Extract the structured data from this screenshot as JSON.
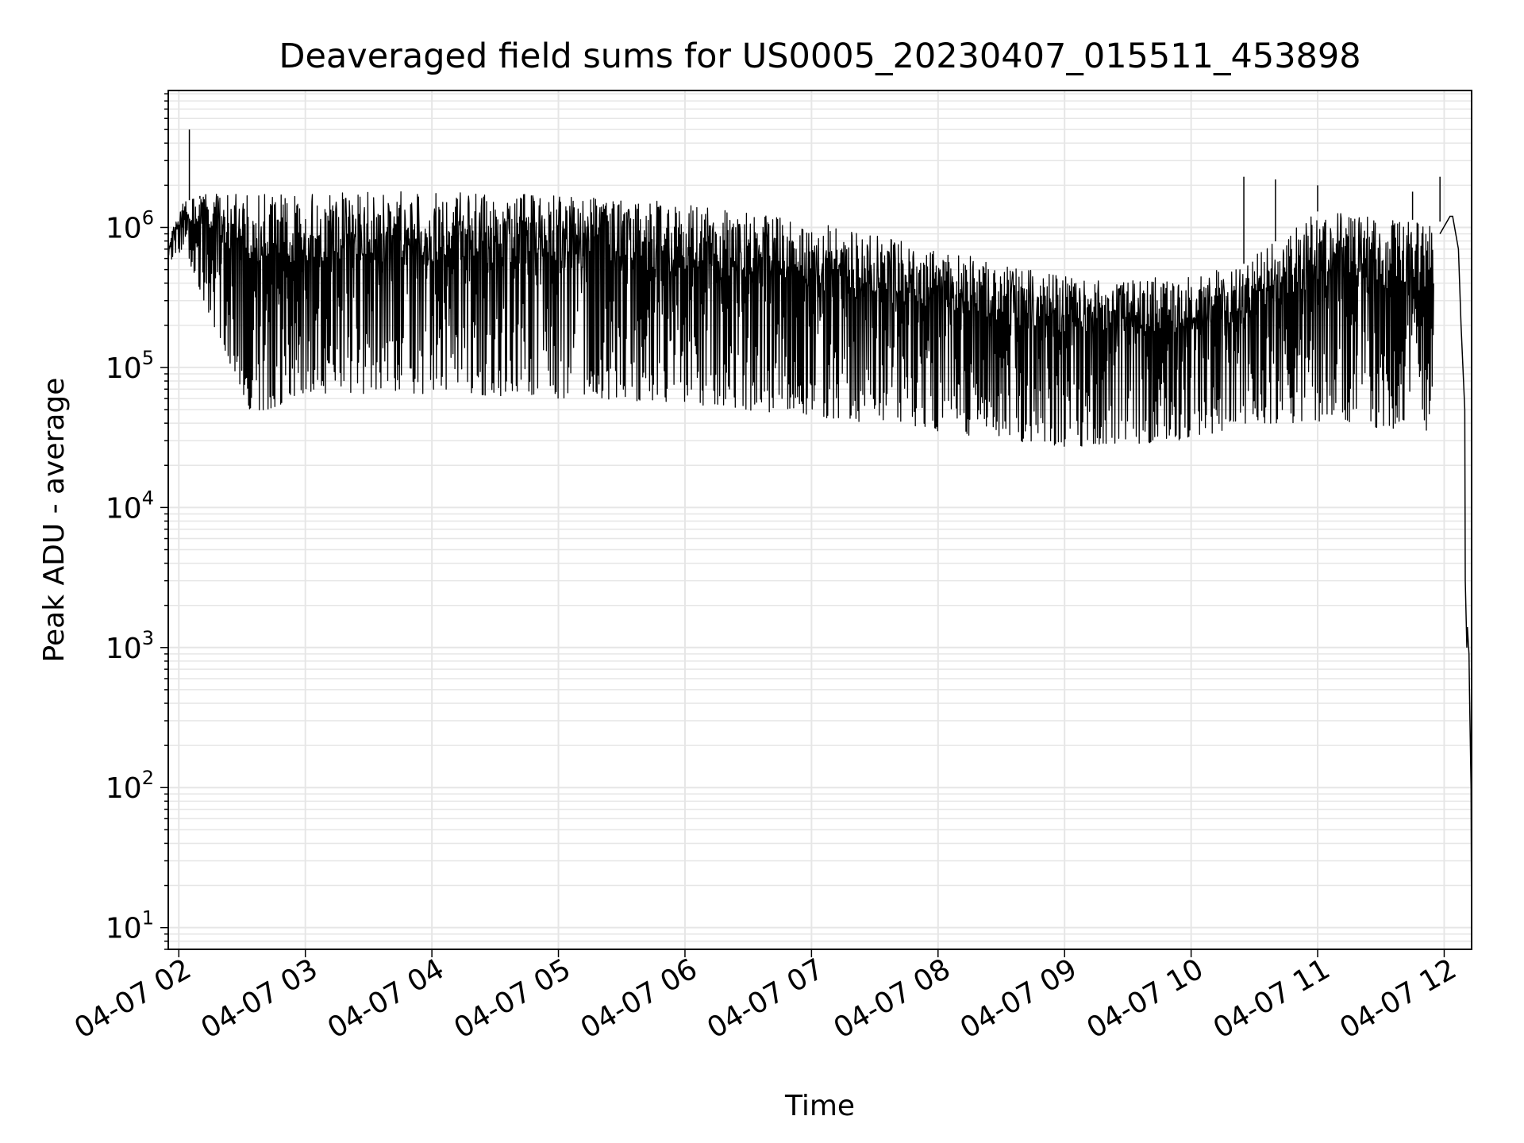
{
  "chart_data": {
    "type": "line",
    "title": "Deaveraged field sums for US0005_20230407_015511_453898",
    "xlabel": "Time",
    "ylabel": "Peak ADU - average",
    "y_scale": "log",
    "grid": true,
    "grid_color": "#e6e6e6",
    "line_color": "#000000",
    "xlim": [
      "04-07 01:55",
      "04-07 12:13"
    ],
    "ylim": [
      7,
      9500000
    ],
    "x_ticks": [
      {
        "value": "04-07 02:00",
        "label": "04-07 02"
      },
      {
        "value": "04-07 03:00",
        "label": "04-07 03"
      },
      {
        "value": "04-07 04:00",
        "label": "04-07 04"
      },
      {
        "value": "04-07 05:00",
        "label": "04-07 05"
      },
      {
        "value": "04-07 06:00",
        "label": "04-07 06"
      },
      {
        "value": "04-07 07:00",
        "label": "04-07 07"
      },
      {
        "value": "04-07 08:00",
        "label": "04-07 08"
      },
      {
        "value": "04-07 09:00",
        "label": "04-07 09"
      },
      {
        "value": "04-07 10:00",
        "label": "04-07 10"
      },
      {
        "value": "04-07 11:00",
        "label": "04-07 11"
      },
      {
        "value": "04-07 12:00",
        "label": "04-07 12"
      }
    ],
    "y_ticks": [
      {
        "value": 10,
        "base": "10",
        "exp": "1"
      },
      {
        "value": 100,
        "base": "10",
        "exp": "2"
      },
      {
        "value": 1000,
        "base": "10",
        "exp": "3"
      },
      {
        "value": 10000,
        "base": "10",
        "exp": "4"
      },
      {
        "value": 100000,
        "base": "10",
        "exp": "5"
      },
      {
        "value": 1000000,
        "base": "10",
        "exp": "6"
      }
    ],
    "series": [
      {
        "upper": [
          [
            "04-07 01:55",
            800000
          ],
          [
            "04-07 02:02",
            1500000
          ],
          [
            "04-07 02:15",
            1800000
          ],
          [
            "04-07 03:00",
            1800000
          ],
          [
            "04-07 04:00",
            1800000
          ],
          [
            "04-07 05:00",
            1700000
          ],
          [
            "04-07 06:00",
            1500000
          ],
          [
            "04-07 07:00",
            1100000
          ],
          [
            "04-07 08:00",
            700000
          ],
          [
            "04-07 09:00",
            450000
          ],
          [
            "04-07 10:00",
            450000
          ],
          [
            "04-07 10:25",
            550000
          ],
          [
            "04-07 11:00",
            1300000
          ],
          [
            "04-07 11:55",
            1100000
          ]
        ],
        "lower": [
          [
            "04-07 01:55",
            550000
          ],
          [
            "04-07 02:02",
            700000
          ],
          [
            "04-07 02:20",
            150000
          ],
          [
            "04-07 02:35",
            45000
          ],
          [
            "04-07 03:00",
            65000
          ],
          [
            "04-07 04:00",
            65000
          ],
          [
            "04-07 05:00",
            60000
          ],
          [
            "04-07 06:00",
            55000
          ],
          [
            "04-07 07:00",
            45000
          ],
          [
            "04-07 08:00",
            35000
          ],
          [
            "04-07 09:00",
            27000
          ],
          [
            "04-07 10:00",
            30000
          ],
          [
            "04-07 10:25",
            40000
          ],
          [
            "04-07 11:00",
            40000
          ],
          [
            "04-07 11:55",
            35000
          ]
        ],
        "spikes": [
          [
            "04-07 02:05",
            5000000
          ],
          [
            "04-07 02:10",
            1600000
          ],
          [
            "04-07 10:25",
            2300000
          ],
          [
            "04-07 10:40",
            2200000
          ],
          [
            "04-07 11:00",
            2000000
          ],
          [
            "04-07 11:45",
            1800000
          ],
          [
            "04-07 11:58",
            2300000
          ]
        ],
        "falloff": [
          [
            "04-07 11:58",
            900000
          ],
          [
            "04-07 12:02",
            1200000
          ],
          [
            "04-07 12:04",
            1200000
          ],
          [
            "04-07 12:06",
            700000
          ],
          [
            "04-07 12:08",
            200000
          ],
          [
            "04-07 12:09",
            50000
          ],
          [
            "04-07 12:10",
            3000
          ],
          [
            "04-07 12:10",
            1000
          ],
          [
            "04-07 12:11",
            1400
          ],
          [
            "04-07 12:11",
            900
          ],
          [
            "04-07 12:12",
            500
          ],
          [
            "04-07 12:12",
            100
          ],
          [
            "04-07 12:13",
            8
          ]
        ]
      }
    ]
  }
}
